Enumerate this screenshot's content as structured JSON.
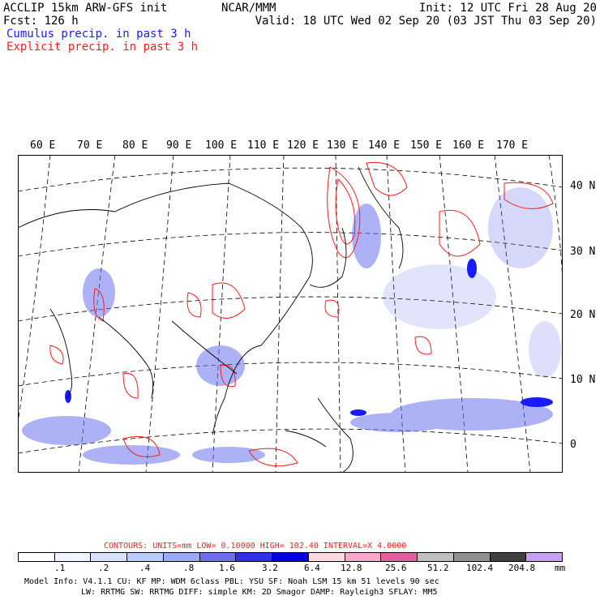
{
  "header": {
    "title_left": "ACCLIP 15km ARW-GFS init",
    "forecast": "Fcst:  126 h",
    "center": "NCAR/MMM",
    "init": "Init: 12 UTC Fri 28 Aug 20",
    "valid": "Valid: 18 UTC Wed 02 Sep 20 (03 JST Thu 03 Sep 20)",
    "legend_cumulus": "Cumulus precip. in past 3 h",
    "legend_explicit": "Explicit precip. in past 3 h"
  },
  "map": {
    "lon_labels": [
      "60 E",
      "70 E",
      "80 E",
      "90 E",
      "100 E",
      "110 E",
      "120 E",
      "130 E",
      "140 E",
      "150 E",
      "160 E",
      "170 E"
    ],
    "lat_labels": [
      "40 N",
      "30 N",
      "20 N",
      "10 N",
      "0"
    ]
  },
  "contour_info": {
    "text": "CONTOURS:  UNITS=mm  LOW= 0.10000      HIGH=  102.40      INTERVAL=X  4.0000"
  },
  "colorbar": {
    "colors": [
      "#ffffff",
      "#f0f4ff",
      "#d8e4ff",
      "#b8ccff",
      "#9aaaf5",
      "#7070ee",
      "#3030e8",
      "#0000e0",
      "#ffd8e0",
      "#f8a8c8",
      "#e060a0",
      "#c0c0c0",
      "#909090",
      "#404040",
      "#c8a0f0"
    ],
    "tick_labels": [
      ".1",
      ".2",
      ".4",
      ".8",
      "1.6",
      "3.2",
      "6.4",
      "12.8",
      "25.6",
      "51.2",
      "102.4",
      "204.8"
    ],
    "unit": "mm"
  },
  "footer": {
    "line1": "Model Info: V4.1.1    CU: KF     MP: WDM 6class  PBL: YSU     SF: Noah LSM    15 km   51 levels   90 sec",
    "line2": "LW: RRTMG   SW: RRTMG  DIFF: simple KM: 2D Smagor DAMP: Rayleigh3  SFLAY: MM5"
  },
  "colors": {
    "cumulus": "#1a1aff",
    "explicit": "#ff1a1a"
  }
}
